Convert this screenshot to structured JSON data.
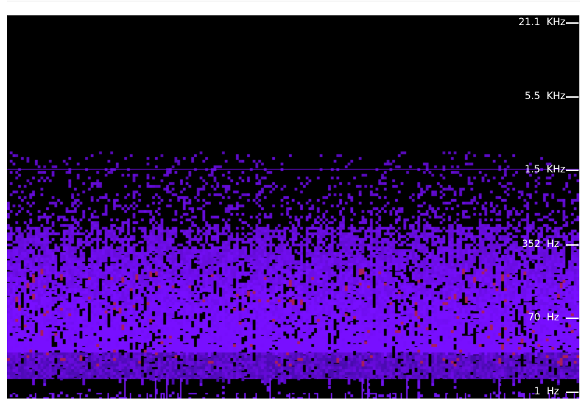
{
  "spectrogram": {
    "labels": [
      {
        "value": "21.1",
        "unit": "KHz"
      },
      {
        "value": "5.5",
        "unit": "KHz"
      },
      {
        "value": "1.5",
        "unit": "KHz"
      },
      {
        "value": "352",
        "unit": "Hz"
      },
      {
        "value": "70",
        "unit": "Hz"
      },
      {
        "value": "1",
        "unit": "Hz"
      }
    ],
    "colors": {
      "background": "#000000",
      "low": "#4a08b8",
      "mid": "#7a10ff",
      "high": "#b01a5a",
      "label": "#ffffff"
    }
  }
}
